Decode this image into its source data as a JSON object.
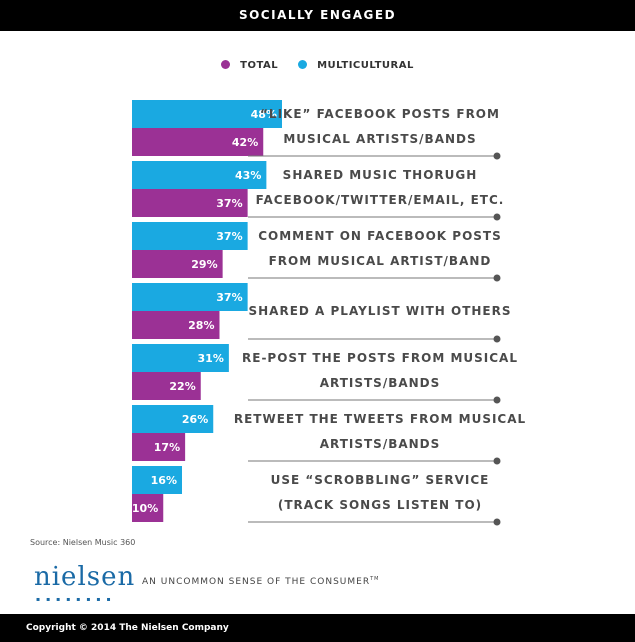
{
  "header": {
    "title": "SOCIALLY ENGAGED"
  },
  "legend": [
    {
      "label": "TOTAL",
      "color": "#9b3195"
    },
    {
      "label": "MULTICULTURAL",
      "color": "#1aa9e1"
    }
  ],
  "chart_data": {
    "type": "bar",
    "orientation": "horizontal",
    "title": "SOCIALLY ENGAGED",
    "categories": [
      [
        "“LIKE” FACEBOOK POSTS FROM",
        "MUSICAL ARTISTS/BANDS"
      ],
      [
        "SHARED MUSIC THORUGH",
        "FACEBOOK/TWITTER/EMAIL, ETC."
      ],
      [
        "COMMENT ON FACEBOOK POSTS",
        "FROM MUSICAL ARTIST/BAND"
      ],
      [
        "SHARED A PLAYLIST WITH OTHERS"
      ],
      [
        "RE-POST THE POSTS FROM MUSICAL",
        "ARTISTS/BANDS"
      ],
      [
        "RETWEET THE TWEETS FROM MUSICAL",
        "ARTISTS/BANDS"
      ],
      [
        "USE “SCROBBLING” SERVICE",
        "(TRACK SONGS LISTEN TO)"
      ]
    ],
    "series": [
      {
        "name": "MULTICULTURAL",
        "color": "#1aa9e1",
        "values": [
          48,
          43,
          37,
          37,
          31,
          26,
          16
        ]
      },
      {
        "name": "TOTAL",
        "color": "#9b3195",
        "values": [
          42,
          37,
          29,
          28,
          22,
          17,
          10
        ]
      }
    ],
    "value_suffix": "%",
    "xlim": [
      0,
      48
    ],
    "grid": false,
    "legend_position": "top-center"
  },
  "source": "Source: Nielsen Music 360",
  "brand": {
    "logo": "nielsen",
    "logo_dots": "▪▪▪▪▪▪▪▪",
    "tagline": "AN UNCOMMON SENSE OF THE CONSUMER",
    "tagline_mark": "TM",
    "color": "#1a6aa6"
  },
  "footer": {
    "copyright": "Copyright © 2014 The Nielsen Company"
  }
}
